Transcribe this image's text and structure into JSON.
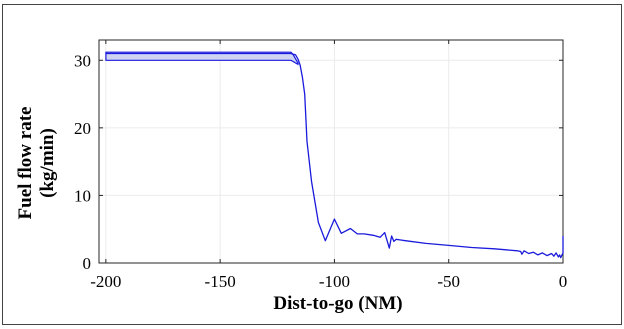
{
  "chart_data": {
    "type": "line",
    "xlabel": "Dist-to-go (NM)",
    "ylabel_lines": [
      "Fuel flow rate",
      "(kg/min)"
    ],
    "xlim": [
      -203,
      0
    ],
    "ylim": [
      0,
      33
    ],
    "xticks": [
      -200,
      -150,
      -100,
      -50,
      0
    ],
    "xtick_labels": [
      "-200",
      "-150",
      "-100",
      "-50",
      "0"
    ],
    "yticks": [
      0,
      10,
      20,
      30
    ],
    "ytick_labels": [
      "0",
      "10",
      "20",
      "30"
    ],
    "grid": true,
    "line_color": "#1a1adc",
    "band_fill": "#cfd4f3",
    "band": {
      "x": [
        -200,
        -119,
        -118,
        -117,
        -116
      ],
      "upper": [
        31.2,
        31.2,
        30.8,
        30.2,
        29.6
      ],
      "lower": [
        30.0,
        30.0,
        29.8,
        29.6,
        29.4
      ]
    },
    "series": [
      {
        "x": [
          -200,
          -119,
          -117,
          -116,
          -115,
          -114,
          -113,
          -112,
          -110,
          -107,
          -104,
          -100,
          -97,
          -93,
          -90,
          -87,
          -83,
          -80,
          -78,
          -76,
          -75,
          -74,
          -73,
          -71,
          -69,
          -60,
          -50,
          -40,
          -30,
          -20,
          -18.5,
          -18,
          -17,
          -15,
          -13,
          -11,
          -9,
          -7,
          -5,
          -4,
          -3,
          -2,
          -1.5,
          -1,
          0,
          0
        ],
        "y": [
          31.0,
          31.0,
          30.8,
          30.2,
          29.3,
          27.5,
          25.0,
          18.0,
          12.0,
          6.0,
          3.3,
          6.5,
          4.4,
          5.1,
          4.3,
          4.3,
          4.1,
          3.8,
          4.5,
          2.2,
          4.0,
          3.2,
          3.5,
          3.4,
          3.3,
          2.9,
          2.6,
          2.3,
          2.1,
          1.8,
          1.7,
          1.3,
          1.8,
          1.4,
          1.6,
          1.2,
          1.5,
          1.1,
          1.4,
          1.0,
          1.5,
          0.9,
          1.2,
          0.8,
          1.5,
          4.0
        ]
      }
    ]
  }
}
